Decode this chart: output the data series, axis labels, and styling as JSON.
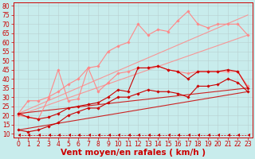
{
  "background_color": "#c8ecec",
  "grid_color": "#b0c8c8",
  "xlabel": "Vent moyen/en rafales ( km/h )",
  "xlabel_color": "#cc0000",
  "xlabel_fontsize": 7.5,
  "tick_color": "#cc0000",
  "tick_fontsize": 5.5,
  "xlim": [
    -0.5,
    23.5
  ],
  "ylim": [
    8,
    82
  ],
  "yticks": [
    10,
    15,
    20,
    25,
    30,
    35,
    40,
    45,
    50,
    55,
    60,
    65,
    70,
    75,
    80
  ],
  "xticks": [
    0,
    1,
    2,
    3,
    4,
    5,
    6,
    7,
    8,
    9,
    10,
    11,
    12,
    13,
    14,
    15,
    16,
    17,
    18,
    19,
    20,
    21,
    22,
    23
  ],
  "lines": [
    {
      "x": [
        0,
        1,
        2,
        3,
        4,
        5,
        6,
        7,
        8,
        9,
        10,
        11,
        12,
        13,
        14,
        15,
        16,
        17,
        18,
        19,
        20,
        21,
        22,
        23
      ],
      "y": [
        12,
        11,
        12,
        14,
        16,
        20,
        22,
        24,
        24,
        27,
        30,
        30,
        32,
        34,
        33,
        33,
        32,
        30,
        36,
        36,
        37,
        40,
        38,
        33
      ],
      "color": "#cc0000",
      "marker": "D",
      "markersize": 1.8,
      "linewidth": 0.8,
      "alpha": 1.0,
      "zorder": 4
    },
    {
      "x": [
        0,
        1,
        2,
        3,
        4,
        5,
        6,
        7,
        8,
        9,
        10,
        11,
        12,
        13,
        14,
        15,
        16,
        17,
        18,
        19,
        20,
        21,
        22,
        23
      ],
      "y": [
        21,
        19,
        18,
        19,
        21,
        24,
        25,
        26,
        27,
        30,
        34,
        33,
        46,
        46,
        47,
        45,
        44,
        40,
        44,
        44,
        44,
        45,
        44,
        35
      ],
      "color": "#cc0000",
      "marker": "D",
      "markersize": 1.8,
      "linewidth": 0.8,
      "alpha": 1.0,
      "zorder": 4
    },
    {
      "x": [
        0,
        23
      ],
      "y": [
        12,
        33
      ],
      "color": "#cc0000",
      "marker": null,
      "linewidth": 0.8,
      "alpha": 0.85,
      "zorder": 2
    },
    {
      "x": [
        0,
        23
      ],
      "y": [
        21,
        35
      ],
      "color": "#cc0000",
      "marker": null,
      "linewidth": 0.8,
      "alpha": 0.85,
      "zorder": 2
    },
    {
      "x": [
        0,
        1,
        2,
        3,
        4,
        5,
        6,
        7,
        8,
        9,
        10,
        11,
        12,
        13,
        14,
        15,
        16,
        17,
        18,
        19,
        20,
        21,
        22,
        23
      ],
      "y": [
        20,
        19,
        18,
        29,
        45,
        28,
        29,
        46,
        33,
        38,
        43,
        44,
        46,
        46,
        47,
        45,
        44,
        43,
        44,
        44,
        44,
        44,
        44,
        36
      ],
      "color": "#ff8888",
      "marker": "D",
      "markersize": 1.8,
      "linewidth": 0.8,
      "alpha": 1.0,
      "zorder": 3
    },
    {
      "x": [
        0,
        1,
        2,
        3,
        4,
        5,
        6,
        7,
        8,
        9,
        10,
        11,
        12,
        13,
        14,
        15,
        16,
        17,
        18,
        19,
        20,
        21,
        22,
        23
      ],
      "y": [
        21,
        28,
        28,
        30,
        33,
        37,
        40,
        46,
        47,
        55,
        58,
        60,
        70,
        64,
        67,
        66,
        72,
        77,
        70,
        68,
        70,
        70,
        70,
        64
      ],
      "color": "#ff8888",
      "marker": "D",
      "markersize": 1.8,
      "linewidth": 0.8,
      "alpha": 1.0,
      "zorder": 3
    },
    {
      "x": [
        0,
        23
      ],
      "y": [
        20,
        64
      ],
      "color": "#ff8888",
      "marker": null,
      "linewidth": 0.8,
      "alpha": 0.85,
      "zorder": 1
    },
    {
      "x": [
        0,
        23
      ],
      "y": [
        21,
        75
      ],
      "color": "#ff8888",
      "marker": null,
      "linewidth": 0.8,
      "alpha": 0.85,
      "zorder": 1
    },
    {
      "x": [
        0,
        1,
        2,
        3,
        4,
        5,
        6,
        7,
        8,
        9,
        10,
        11,
        12,
        13,
        14,
        15,
        16,
        17,
        18,
        19,
        20,
        21,
        22,
        23
      ],
      "y": [
        9,
        9,
        9,
        9,
        9,
        9,
        9,
        9,
        9,
        9,
        9,
        9,
        9,
        9,
        9,
        9,
        9,
        9,
        9,
        9,
        9,
        9,
        9,
        9
      ],
      "color": "#cc0000",
      "marker": 4,
      "markersize": 2.5,
      "linewidth": 0.5,
      "alpha": 1.0,
      "zorder": 4,
      "linestyle": "--"
    }
  ]
}
